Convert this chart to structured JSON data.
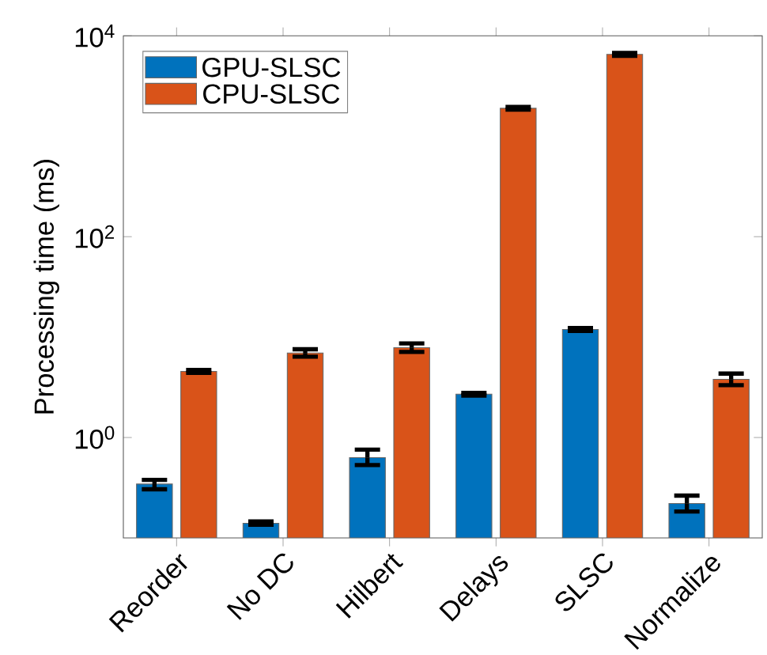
{
  "chart_data": {
    "type": "bar",
    "ylabel": "Processing time (ms)",
    "categories": [
      "Reorder",
      "No DC",
      "Hilbert",
      "Delays",
      "SLSC",
      "Normalize"
    ],
    "series": [
      {
        "name": "GPU-SLSC",
        "color": "#0072bd",
        "values": [
          0.344,
          0.14,
          0.63,
          2.7,
          11.9,
          0.22
        ],
        "errors": [
          [
            0.305,
            0.379
          ],
          [
            0.135,
            0.146
          ],
          [
            0.532,
            0.757
          ],
          [
            2.62,
            2.78
          ],
          [
            11.5,
            12.3
          ],
          [
            0.183,
            0.264
          ]
        ]
      },
      {
        "name": "CPU-SLSC",
        "color": "#d95319",
        "values": [
          4.55,
          6.95,
          7.85,
          1900,
          6540,
          3.8
        ],
        "errors": [
          [
            4.4,
            4.7
          ],
          [
            6.39,
            7.57
          ],
          [
            7.12,
            8.65
          ],
          [
            1840,
            1960
          ],
          [
            6330,
            6750
          ],
          [
            3.32,
            4.33
          ]
        ]
      }
    ],
    "log": "y",
    "ylim": [
      0.1,
      10000
    ],
    "yticks": [
      {
        "value": 1,
        "label": "10$^{0}$"
      },
      {
        "value": 100,
        "label": "10$^{2}$"
      },
      {
        "value": 10000,
        "label": "10$^{4}$"
      }
    ],
    "legend": "top left"
  }
}
